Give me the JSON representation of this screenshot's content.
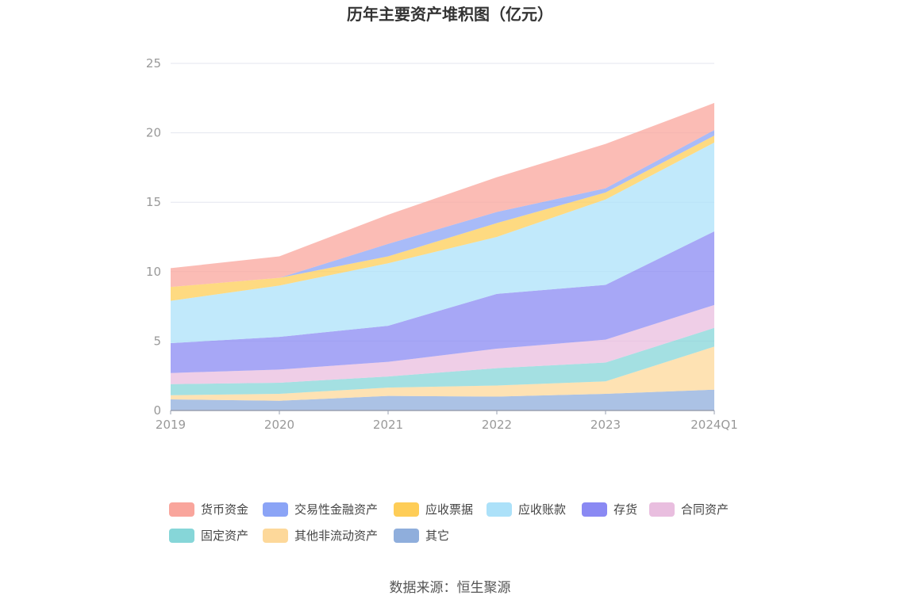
{
  "chart_data": {
    "type": "area",
    "stacked": true,
    "title": "历年主要资产堆积图（亿元）",
    "categories": [
      "2019",
      "2020",
      "2021",
      "2022",
      "2023",
      "2024Q1"
    ],
    "ylim": [
      0,
      25
    ],
    "yticks": [
      0,
      5,
      10,
      15,
      20,
      25
    ],
    "grid": true,
    "legend_position": "bottom",
    "series": [
      {
        "name": "其它",
        "color": "#8faedc",
        "values": [
          0.8,
          0.7,
          1.05,
          1.0,
          1.2,
          1.5
        ]
      },
      {
        "name": "其他非流动资产",
        "color": "#fdd89a",
        "values": [
          0.3,
          0.5,
          0.6,
          0.8,
          0.9,
          3.1
        ]
      },
      {
        "name": "固定资产",
        "color": "#86d6d8",
        "values": [
          0.8,
          0.8,
          0.8,
          1.25,
          1.35,
          1.35
        ]
      },
      {
        "name": "合同资产",
        "color": "#e9bedf",
        "values": [
          0.8,
          0.95,
          1.05,
          1.4,
          1.65,
          1.65
        ]
      },
      {
        "name": "存货",
        "color": "#8a89f3",
        "values": [
          2.15,
          2.35,
          2.6,
          3.95,
          3.95,
          5.3
        ]
      },
      {
        "name": "应收账款",
        "color": "#ace1f9",
        "values": [
          3.05,
          3.7,
          4.5,
          4.1,
          6.15,
          6.4
        ]
      },
      {
        "name": "应收票据",
        "color": "#fecd57",
        "values": [
          1.0,
          0.55,
          0.5,
          1.0,
          0.5,
          0.5
        ]
      },
      {
        "name": "交易性金融资产",
        "color": "#8ba4f6",
        "values": [
          0.0,
          0.0,
          0.9,
          0.8,
          0.3,
          0.4
        ]
      },
      {
        "name": "货币资金",
        "color": "#f9a59c",
        "values": [
          1.35,
          1.55,
          2.1,
          2.5,
          3.2,
          1.95
        ]
      }
    ],
    "legend_order": [
      "货币资金",
      "交易性金融资产",
      "应收票据",
      "应收账款",
      "存货",
      "合同资产",
      "固定资产",
      "其他非流动资产",
      "其它"
    ]
  },
  "source": "数据来源：恒生聚源"
}
